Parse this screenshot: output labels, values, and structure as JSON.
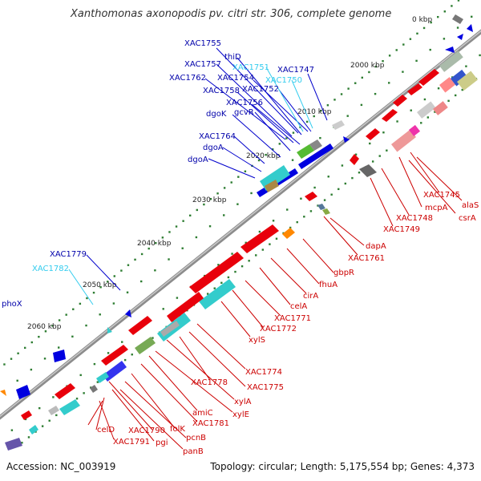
{
  "header": {
    "title": "Xanthomonas axonopodis pv. citri str. 306, complete genome"
  },
  "footer": {
    "accession": "Accession: NC_003919",
    "summary": "Topology: circular; Length: 5,175,554 bp; Genes: 4,373"
  },
  "scale": {
    "ticks": [
      {
        "label": "2000 kbp"
      },
      {
        "label": "2010 kbp"
      },
      {
        "label": "2020 kbp"
      },
      {
        "label": "2030 kbp"
      },
      {
        "label": "2040 kbp"
      },
      {
        "label": "2050 kbp"
      },
      {
        "label": "2060 kbp"
      },
      {
        "label": "0 kbp"
      }
    ]
  },
  "colors": {
    "forward_genes": "#e8000b",
    "reverse_genes": "#0000e0",
    "forward_labels": "#cc0000",
    "reverse_labels": "#0000aa",
    "pseudo_labels": "#33ccee",
    "backbone": "#999999",
    "dots": "#2e7d32"
  },
  "labels": {
    "top": [
      "XAC1755",
      "thiD",
      "XAC1757",
      "XAC1751",
      "XAC1747",
      "XAC1762",
      "XAC1754",
      "XAC1750",
      "XAC1758",
      "XAC1752",
      "XAC1756",
      "dgoK",
      "gcvR",
      "XAC1764",
      "dgoA",
      "dgoA",
      "XAC1779",
      "XAC1782",
      "phoX"
    ],
    "bottom": [
      "alaS",
      "XAC1745",
      "csrA",
      "mcpA",
      "XAC1748",
      "XAC1749",
      "dapA",
      "XAC1761",
      "gbpR",
      "fhuA",
      "cirA",
      "celA",
      "XAC1771",
      "XAC1772",
      "xylS",
      "XAC1774",
      "XAC1775",
      "XAC1778",
      "xylA",
      "xylE",
      "amiC",
      "XAC1781",
      "folK",
      "pcnB",
      "panB",
      "pgi",
      "XAC1790",
      "XAC1791",
      "celD"
    ]
  }
}
